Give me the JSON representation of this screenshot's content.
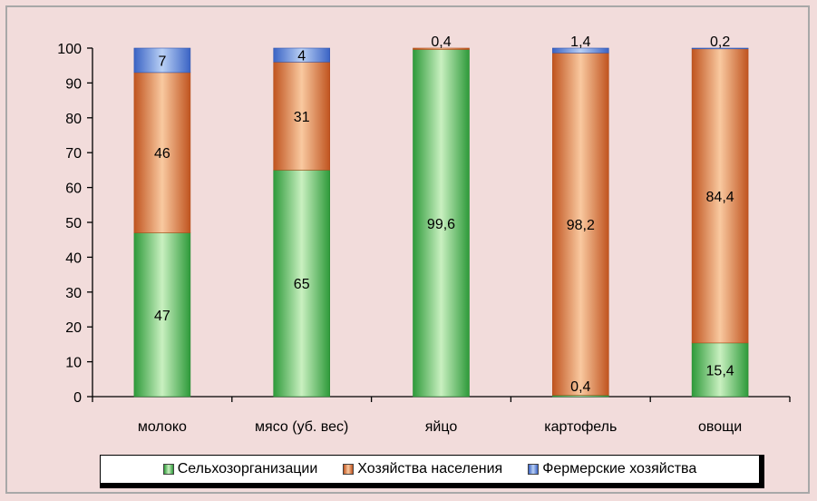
{
  "chart_data": {
    "type": "bar",
    "stacked": true,
    "categories": [
      "молоко",
      "мясо (уб. вес)",
      "яйцо",
      "картофель",
      "овощи"
    ],
    "series": [
      {
        "name": "Сельхозорганизации",
        "color": "#5fbf5f",
        "values": [
          47,
          65,
          99.6,
          0.4,
          15.4
        ],
        "labels": [
          "47",
          "65",
          "99,6",
          "0,4",
          "15,4"
        ]
      },
      {
        "name": "Хозяйства населения",
        "color": "#e0884f",
        "values": [
          46,
          31,
          0.4,
          98.2,
          84.4
        ],
        "labels": [
          "46",
          "31",
          "0,4",
          "98,2",
          "84,4"
        ]
      },
      {
        "name": "Фермерские хозяйства",
        "color": "#4f7ed4",
        "values": [
          7,
          4,
          0,
          1.4,
          0.2
        ],
        "labels": [
          "7",
          "4",
          "",
          "1,4",
          "0,2"
        ]
      }
    ],
    "ylim": [
      0,
      100
    ],
    "yticks": [
      "0",
      "10",
      "20",
      "30",
      "40",
      "50",
      "60",
      "70",
      "80",
      "90",
      "100"
    ],
    "grid": false,
    "legend": "bottom"
  }
}
